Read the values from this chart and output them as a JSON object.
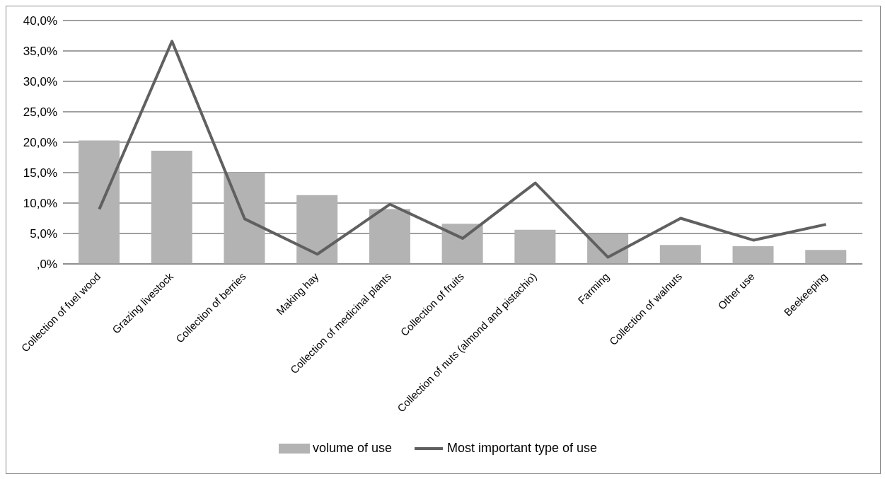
{
  "chart_data": {
    "type": "bar",
    "categories": [
      "Collection of fuel wood",
      "Grazing livestock",
      "Collection of berries",
      "Making hay",
      "Collection of medicinal plants",
      "Collection of fruits",
      "Collection of nuts (almond and pistachio)",
      "Farming",
      "Collection of walnuts",
      "Other use",
      "Beekeeping"
    ],
    "series": [
      {
        "name": "volume of use",
        "color": "#b3b3b3",
        "values": [
          20.3,
          18.6,
          15.0,
          11.3,
          9.0,
          6.6,
          5.6,
          4.9,
          3.1,
          2.9,
          2.3
        ]
      },
      {
        "name": "Most important type of use",
        "type": "line",
        "color": "#606060",
        "values": [
          9.0,
          36.6,
          7.4,
          1.6,
          9.8,
          4.2,
          13.3,
          1.1,
          7.5,
          3.9,
          6.5
        ]
      }
    ],
    "ylim": [
      0,
      40
    ],
    "yticks": [
      {
        "value": 0,
        "label": ",0%"
      },
      {
        "value": 5,
        "label": "5,0%"
      },
      {
        "value": 10,
        "label": "10,0%"
      },
      {
        "value": 15,
        "label": "15,0%"
      },
      {
        "value": 20,
        "label": "20,0%"
      },
      {
        "value": 25,
        "label": "25,0%"
      },
      {
        "value": 30,
        "label": "30,0%"
      },
      {
        "value": 35,
        "label": "35,0%"
      },
      {
        "value": 40,
        "label": "40,0%"
      }
    ],
    "grid": "y",
    "legend": "bottom",
    "marker": "none",
    "line_style": "solid"
  }
}
